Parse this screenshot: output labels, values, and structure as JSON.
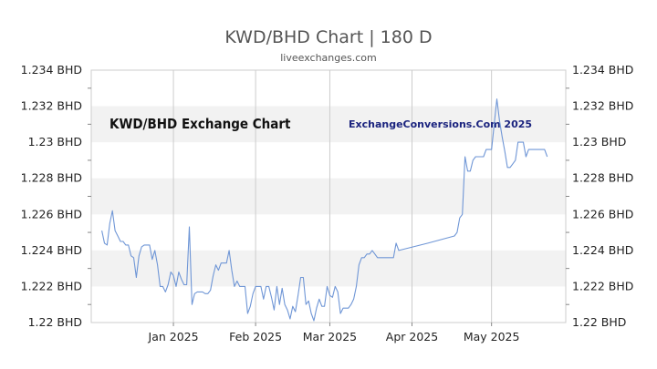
{
  "header": {
    "title": "KWD/BHD Chart | 180 D",
    "subtitle": "liveexchanges.com"
  },
  "chart_data": {
    "type": "line",
    "title": "KWD/BHD Exchange Chart",
    "watermark": "ExchangeConversions.Com 2025",
    "ylim": [
      1.22,
      1.234
    ],
    "yticks": [
      "1.234 BHD",
      "1.232 BHD",
      "1.23 BHD",
      "1.228 BHD",
      "1.226 BHD",
      "1.224 BHD",
      "1.222 BHD",
      "1.22 BHD"
    ],
    "ytick_values": [
      1.234,
      1.232,
      1.23,
      1.228,
      1.226,
      1.224,
      1.222,
      1.22
    ],
    "xlim": [
      "2024-12-01",
      "2025-05-29"
    ],
    "xticks": [
      {
        "label": "Jan 2025",
        "date": "2025-01-01"
      },
      {
        "label": "Feb 2025",
        "date": "2025-02-01"
      },
      {
        "label": "Mar 2025",
        "date": "2025-03-01"
      },
      {
        "label": "Apr 2025",
        "date": "2025-04-01"
      },
      {
        "label": "May 2025",
        "date": "2025-05-01"
      }
    ],
    "grid": true,
    "line_color": "#6f96d6",
    "band_color": "#f2f2f2",
    "series": [
      {
        "points": [
          [
            "2024-12-05",
            1.2251
          ],
          [
            "2024-12-06",
            1.2244
          ],
          [
            "2024-12-07",
            1.2243
          ],
          [
            "2024-12-08",
            1.2255
          ],
          [
            "2024-12-09",
            1.2262
          ],
          [
            "2024-12-10",
            1.2251
          ],
          [
            "2024-12-11",
            1.2248
          ],
          [
            "2024-12-12",
            1.2245
          ],
          [
            "2024-12-13",
            1.2245
          ],
          [
            "2024-12-14",
            1.2243
          ],
          [
            "2024-12-15",
            1.2243
          ],
          [
            "2024-12-16",
            1.2237
          ],
          [
            "2024-12-17",
            1.2236
          ],
          [
            "2024-12-18",
            1.2225
          ],
          [
            "2024-12-19",
            1.2237
          ],
          [
            "2024-12-20",
            1.2242
          ],
          [
            "2024-12-21",
            1.2243
          ],
          [
            "2024-12-22",
            1.2243
          ],
          [
            "2024-12-23",
            1.2243
          ],
          [
            "2024-12-24",
            1.2235
          ],
          [
            "2024-12-25",
            1.224
          ],
          [
            "2024-12-26",
            1.2232
          ],
          [
            "2024-12-27",
            1.222
          ],
          [
            "2024-12-28",
            1.222
          ],
          [
            "2024-12-29",
            1.2217
          ],
          [
            "2024-12-30",
            1.2221
          ],
          [
            "2024-12-31",
            1.2228
          ],
          [
            "2025-01-01",
            1.2226
          ],
          [
            "2025-01-02",
            1.222
          ],
          [
            "2025-01-03",
            1.2228
          ],
          [
            "2025-01-04",
            1.2224
          ],
          [
            "2025-01-05",
            1.2221
          ],
          [
            "2025-01-06",
            1.2221
          ],
          [
            "2025-01-07",
            1.2253
          ],
          [
            "2025-01-08",
            1.221
          ],
          [
            "2025-01-09",
            1.2216
          ],
          [
            "2025-01-10",
            1.2217
          ],
          [
            "2025-01-11",
            1.2217
          ],
          [
            "2025-01-12",
            1.2217
          ],
          [
            "2025-01-13",
            1.2216
          ],
          [
            "2025-01-14",
            1.2216
          ],
          [
            "2025-01-15",
            1.2218
          ],
          [
            "2025-01-16",
            1.2226
          ],
          [
            "2025-01-17",
            1.2232
          ],
          [
            "2025-01-18",
            1.2229
          ],
          [
            "2025-01-19",
            1.2233
          ],
          [
            "2025-01-20",
            1.2233
          ],
          [
            "2025-01-21",
            1.2233
          ],
          [
            "2025-01-22",
            1.224
          ],
          [
            "2025-01-23",
            1.2229
          ],
          [
            "2025-01-24",
            1.222
          ],
          [
            "2025-01-25",
            1.2223
          ],
          [
            "2025-01-26",
            1.222
          ],
          [
            "2025-01-27",
            1.222
          ],
          [
            "2025-01-28",
            1.222
          ],
          [
            "2025-01-29",
            1.2205
          ],
          [
            "2025-01-30",
            1.2209
          ],
          [
            "2025-01-31",
            1.2216
          ],
          [
            "2025-02-01",
            1.222
          ],
          [
            "2025-02-02",
            1.222
          ],
          [
            "2025-02-03",
            1.222
          ],
          [
            "2025-02-04",
            1.2213
          ],
          [
            "2025-02-05",
            1.222
          ],
          [
            "2025-02-06",
            1.222
          ],
          [
            "2025-02-07",
            1.2214
          ],
          [
            "2025-02-08",
            1.2207
          ],
          [
            "2025-02-09",
            1.222
          ],
          [
            "2025-02-10",
            1.221
          ],
          [
            "2025-02-11",
            1.2219
          ],
          [
            "2025-02-12",
            1.221
          ],
          [
            "2025-02-13",
            1.2207
          ],
          [
            "2025-02-14",
            1.2202
          ],
          [
            "2025-02-15",
            1.2209
          ],
          [
            "2025-02-16",
            1.2206
          ],
          [
            "2025-02-17",
            1.2215
          ],
          [
            "2025-02-18",
            1.2225
          ],
          [
            "2025-02-19",
            1.2225
          ],
          [
            "2025-02-20",
            1.221
          ],
          [
            "2025-02-21",
            1.2212
          ],
          [
            "2025-02-22",
            1.2205
          ],
          [
            "2025-02-23",
            1.2201
          ],
          [
            "2025-02-24",
            1.2208
          ],
          [
            "2025-02-25",
            1.2213
          ],
          [
            "2025-02-26",
            1.2209
          ],
          [
            "2025-02-27",
            1.2209
          ],
          [
            "2025-02-28",
            1.222
          ],
          [
            "2025-03-01",
            1.2215
          ],
          [
            "2025-03-02",
            1.2214
          ],
          [
            "2025-03-03",
            1.222
          ],
          [
            "2025-03-04",
            1.2217
          ],
          [
            "2025-03-05",
            1.2205
          ],
          [
            "2025-03-06",
            1.2208
          ],
          [
            "2025-03-07",
            1.2208
          ],
          [
            "2025-03-08",
            1.2208
          ],
          [
            "2025-03-09",
            1.221
          ],
          [
            "2025-03-10",
            1.2213
          ],
          [
            "2025-03-11",
            1.222
          ],
          [
            "2025-03-12",
            1.2232
          ],
          [
            "2025-03-13",
            1.2236
          ],
          [
            "2025-03-14",
            1.2236
          ],
          [
            "2025-03-15",
            1.2238
          ],
          [
            "2025-03-16",
            1.2238
          ],
          [
            "2025-03-17",
            1.224
          ],
          [
            "2025-03-18",
            1.2238
          ],
          [
            "2025-03-19",
            1.2236
          ],
          [
            "2025-03-20",
            1.2236
          ],
          [
            "2025-03-22",
            1.2236
          ],
          [
            "2025-03-24",
            1.2236
          ],
          [
            "2025-03-25",
            1.2236
          ],
          [
            "2025-03-26",
            1.2244
          ],
          [
            "2025-03-27",
            1.224
          ],
          [
            "2025-04-07",
            1.2244
          ],
          [
            "2025-04-17",
            1.2248
          ],
          [
            "2025-04-18",
            1.225
          ],
          [
            "2025-04-19",
            1.2258
          ],
          [
            "2025-04-20",
            1.226
          ],
          [
            "2025-04-21",
            1.2292
          ],
          [
            "2025-04-22",
            1.2284
          ],
          [
            "2025-04-23",
            1.2284
          ],
          [
            "2025-04-24",
            1.229
          ],
          [
            "2025-04-25",
            1.2292
          ],
          [
            "2025-04-26",
            1.2292
          ],
          [
            "2025-04-27",
            1.2292
          ],
          [
            "2025-04-28",
            1.2292
          ],
          [
            "2025-04-29",
            1.2296
          ],
          [
            "2025-04-30",
            1.2296
          ],
          [
            "2025-05-01",
            1.2296
          ],
          [
            "2025-05-02",
            1.231
          ],
          [
            "2025-05-03",
            1.2324
          ],
          [
            "2025-05-04",
            1.2312
          ],
          [
            "2025-05-05",
            1.2303
          ],
          [
            "2025-05-06",
            1.2295
          ],
          [
            "2025-05-07",
            1.2286
          ],
          [
            "2025-05-08",
            1.2286
          ],
          [
            "2025-05-09",
            1.2288
          ],
          [
            "2025-05-10",
            1.229
          ],
          [
            "2025-05-11",
            1.23
          ],
          [
            "2025-05-12",
            1.23
          ],
          [
            "2025-05-13",
            1.23
          ],
          [
            "2025-05-14",
            1.2292
          ],
          [
            "2025-05-15",
            1.2296
          ],
          [
            "2025-05-16",
            1.2296
          ],
          [
            "2025-05-17",
            1.2296
          ],
          [
            "2025-05-18",
            1.2296
          ],
          [
            "2025-05-19",
            1.2296
          ],
          [
            "2025-05-20",
            1.2296
          ],
          [
            "2025-05-21",
            1.2296
          ],
          [
            "2025-05-22",
            1.2292
          ]
        ]
      }
    ]
  }
}
